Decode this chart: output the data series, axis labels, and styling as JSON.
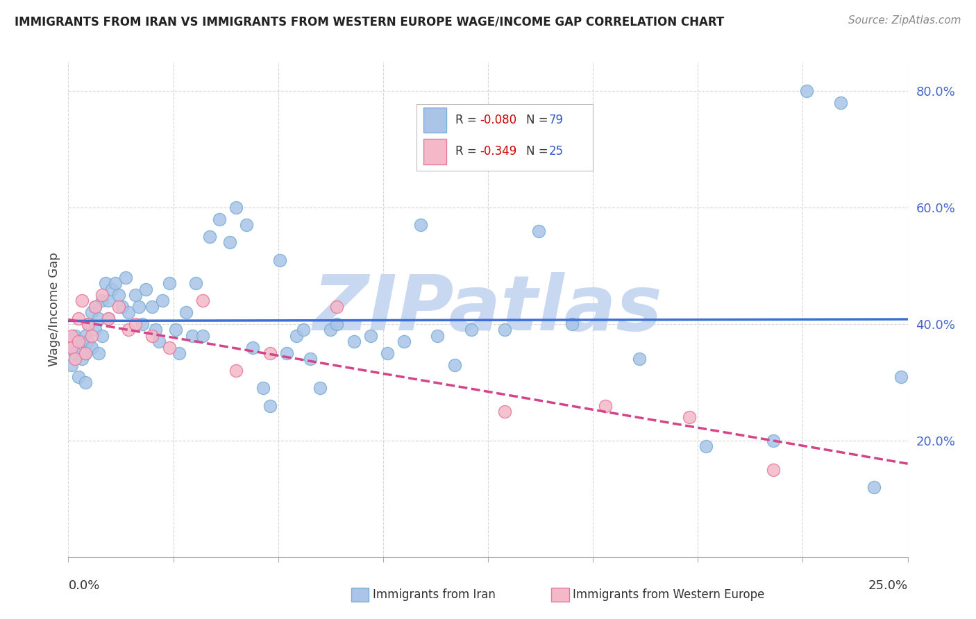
{
  "title": "IMMIGRANTS FROM IRAN VS IMMIGRANTS FROM WESTERN EUROPE WAGE/INCOME GAP CORRELATION CHART",
  "source": "Source: ZipAtlas.com",
  "ylabel": "Wage/Income Gap",
  "xmin": 0.0,
  "xmax": 0.25,
  "ymin": 0.0,
  "ymax": 0.85,
  "yticks": [
    0.2,
    0.4,
    0.6,
    0.8
  ],
  "ytick_labels": [
    "20.0%",
    "40.0%",
    "60.0%",
    "80.0%"
  ],
  "xtick_positions": [
    0.0,
    0.03125,
    0.0625,
    0.09375,
    0.125,
    0.15625,
    0.1875,
    0.21875,
    0.25
  ],
  "grid_color": "#cccccc",
  "background_color": "#ffffff",
  "watermark_text": "ZIPatlas",
  "watermark_color": "#c8d8f0",
  "iran_color": "#aac4e8",
  "iran_edge": "#7aafd4",
  "iran_trend_color": "#3b6fd4",
  "iran_trend_style": "solid",
  "west_color": "#f4b8c8",
  "west_edge": "#e8789a",
  "west_trend_color": "#d44488",
  "west_trend_style": "dashed",
  "iran_R": -0.08,
  "iran_N": 79,
  "west_R": -0.349,
  "west_N": 25,
  "iran_x": [
    0.001,
    0.001,
    0.002,
    0.002,
    0.003,
    0.003,
    0.004,
    0.004,
    0.005,
    0.005,
    0.005,
    0.006,
    0.006,
    0.007,
    0.007,
    0.008,
    0.008,
    0.009,
    0.009,
    0.01,
    0.01,
    0.011,
    0.012,
    0.012,
    0.013,
    0.014,
    0.015,
    0.016,
    0.017,
    0.018,
    0.02,
    0.021,
    0.022,
    0.023,
    0.025,
    0.026,
    0.027,
    0.028,
    0.03,
    0.032,
    0.033,
    0.035,
    0.037,
    0.038,
    0.04,
    0.042,
    0.045,
    0.048,
    0.05,
    0.053,
    0.055,
    0.058,
    0.06,
    0.063,
    0.065,
    0.068,
    0.07,
    0.072,
    0.075,
    0.078,
    0.08,
    0.085,
    0.09,
    0.095,
    0.1,
    0.105,
    0.11,
    0.115,
    0.12,
    0.13,
    0.14,
    0.15,
    0.17,
    0.19,
    0.21,
    0.22,
    0.23,
    0.24,
    0.248
  ],
  "iran_y": [
    0.36,
    0.33,
    0.38,
    0.35,
    0.37,
    0.31,
    0.37,
    0.34,
    0.38,
    0.35,
    0.3,
    0.4,
    0.37,
    0.42,
    0.36,
    0.43,
    0.39,
    0.41,
    0.35,
    0.44,
    0.38,
    0.47,
    0.44,
    0.41,
    0.46,
    0.47,
    0.45,
    0.43,
    0.48,
    0.42,
    0.45,
    0.43,
    0.4,
    0.46,
    0.43,
    0.39,
    0.37,
    0.44,
    0.47,
    0.39,
    0.35,
    0.42,
    0.38,
    0.47,
    0.38,
    0.55,
    0.58,
    0.54,
    0.6,
    0.57,
    0.36,
    0.29,
    0.26,
    0.51,
    0.35,
    0.38,
    0.39,
    0.34,
    0.29,
    0.39,
    0.4,
    0.37,
    0.38,
    0.35,
    0.37,
    0.57,
    0.38,
    0.33,
    0.39,
    0.39,
    0.56,
    0.4,
    0.34,
    0.19,
    0.2,
    0.8,
    0.78,
    0.12,
    0.31
  ],
  "west_x": [
    0.001,
    0.001,
    0.002,
    0.003,
    0.003,
    0.004,
    0.005,
    0.006,
    0.007,
    0.008,
    0.01,
    0.012,
    0.015,
    0.018,
    0.02,
    0.025,
    0.03,
    0.04,
    0.05,
    0.06,
    0.08,
    0.13,
    0.16,
    0.185,
    0.21
  ],
  "west_y": [
    0.38,
    0.36,
    0.34,
    0.37,
    0.41,
    0.44,
    0.35,
    0.4,
    0.38,
    0.43,
    0.45,
    0.41,
    0.43,
    0.39,
    0.4,
    0.38,
    0.36,
    0.44,
    0.32,
    0.35,
    0.43,
    0.25,
    0.26,
    0.24,
    0.15
  ],
  "legend_box_colors": [
    "#aac4e8",
    "#f4b8c8"
  ],
  "legend_edge_colors": [
    "#7aafd4",
    "#e8789a"
  ],
  "scatter_size": 170
}
